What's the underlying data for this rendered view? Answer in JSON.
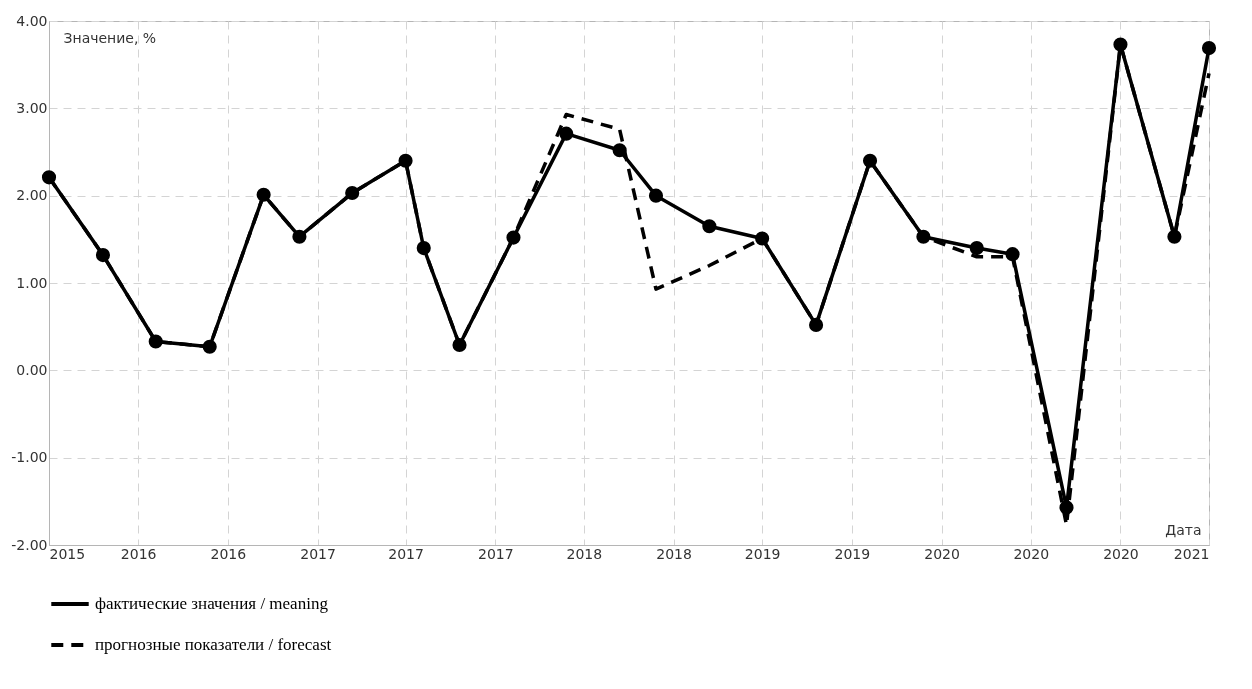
{
  "chart_data": {
    "type": "line",
    "xlabel": "Дата",
    "ylabel": "Значение, %",
    "x": [
      "2015-11",
      "2016-02",
      "2016-05",
      "2016-08",
      "2016-11",
      "2017-01",
      "2017-04",
      "2017-07",
      "2017-08",
      "2017-10",
      "2018-01",
      "2018-04",
      "2018-07",
      "2018-09",
      "2018-12",
      "2019-03",
      "2019-06",
      "2019-09",
      "2019-12",
      "2020-03",
      "2020-05",
      "2020-08",
      "2020-11",
      "2021-02",
      "2021-04"
    ],
    "series": [
      {
        "name": "фактические значения / meaning",
        "color": "#000000",
        "marker": "circle",
        "line_style": "solid",
        "values": [
          2.21,
          1.32,
          0.33,
          0.27,
          2.01,
          1.53,
          2.03,
          2.4,
          1.4,
          0.29,
          1.52,
          2.71,
          2.52,
          2.0,
          1.65,
          1.51,
          0.52,
          2.4,
          1.53,
          1.4,
          1.33,
          -1.57,
          3.73,
          1.53,
          3.69
        ]
      },
      {
        "name": "прогнозные показатели / forecast",
        "color": "#000000",
        "marker": "none",
        "line_style": "dashed",
        "values": [
          2.21,
          1.32,
          0.33,
          0.27,
          2.01,
          1.53,
          2.03,
          2.4,
          1.4,
          0.29,
          1.52,
          2.93,
          2.76,
          0.93,
          1.2,
          1.51,
          0.52,
          2.4,
          1.53,
          1.3,
          1.3,
          -1.77,
          3.73,
          1.53,
          3.4
        ]
      }
    ],
    "xlim": [
      "2015-11",
      "2021-04"
    ],
    "xticks": [
      {
        "value": "2015-11",
        "label": "2015"
      },
      {
        "value": "2016-04",
        "label": "2016"
      },
      {
        "value": "2016-09",
        "label": "2016"
      },
      {
        "value": "2017-02",
        "label": "2017"
      },
      {
        "value": "2017-07",
        "label": "2017"
      },
      {
        "value": "2017-12",
        "label": "2017"
      },
      {
        "value": "2018-05",
        "label": "2018"
      },
      {
        "value": "2018-10",
        "label": "2018"
      },
      {
        "value": "2019-03",
        "label": "2019"
      },
      {
        "value": "2019-08",
        "label": "2019"
      },
      {
        "value": "2020-01",
        "label": "2020"
      },
      {
        "value": "2020-06",
        "label": "2020"
      },
      {
        "value": "2020-11",
        "label": "2020"
      },
      {
        "value": "2021-04",
        "label": "2021"
      }
    ],
    "ylim": [
      -2,
      4
    ],
    "yticks": [
      {
        "value": -2,
        "label": "-2.00"
      },
      {
        "value": -1,
        "label": "-1.00"
      },
      {
        "value": 0,
        "label": "0.00"
      },
      {
        "value": 1,
        "label": "1.00"
      },
      {
        "value": 2,
        "label": "2.00"
      },
      {
        "value": 3,
        "label": "3.00"
      },
      {
        "value": 4,
        "label": "4.00"
      }
    ],
    "grid": true,
    "legend": "bottom"
  }
}
